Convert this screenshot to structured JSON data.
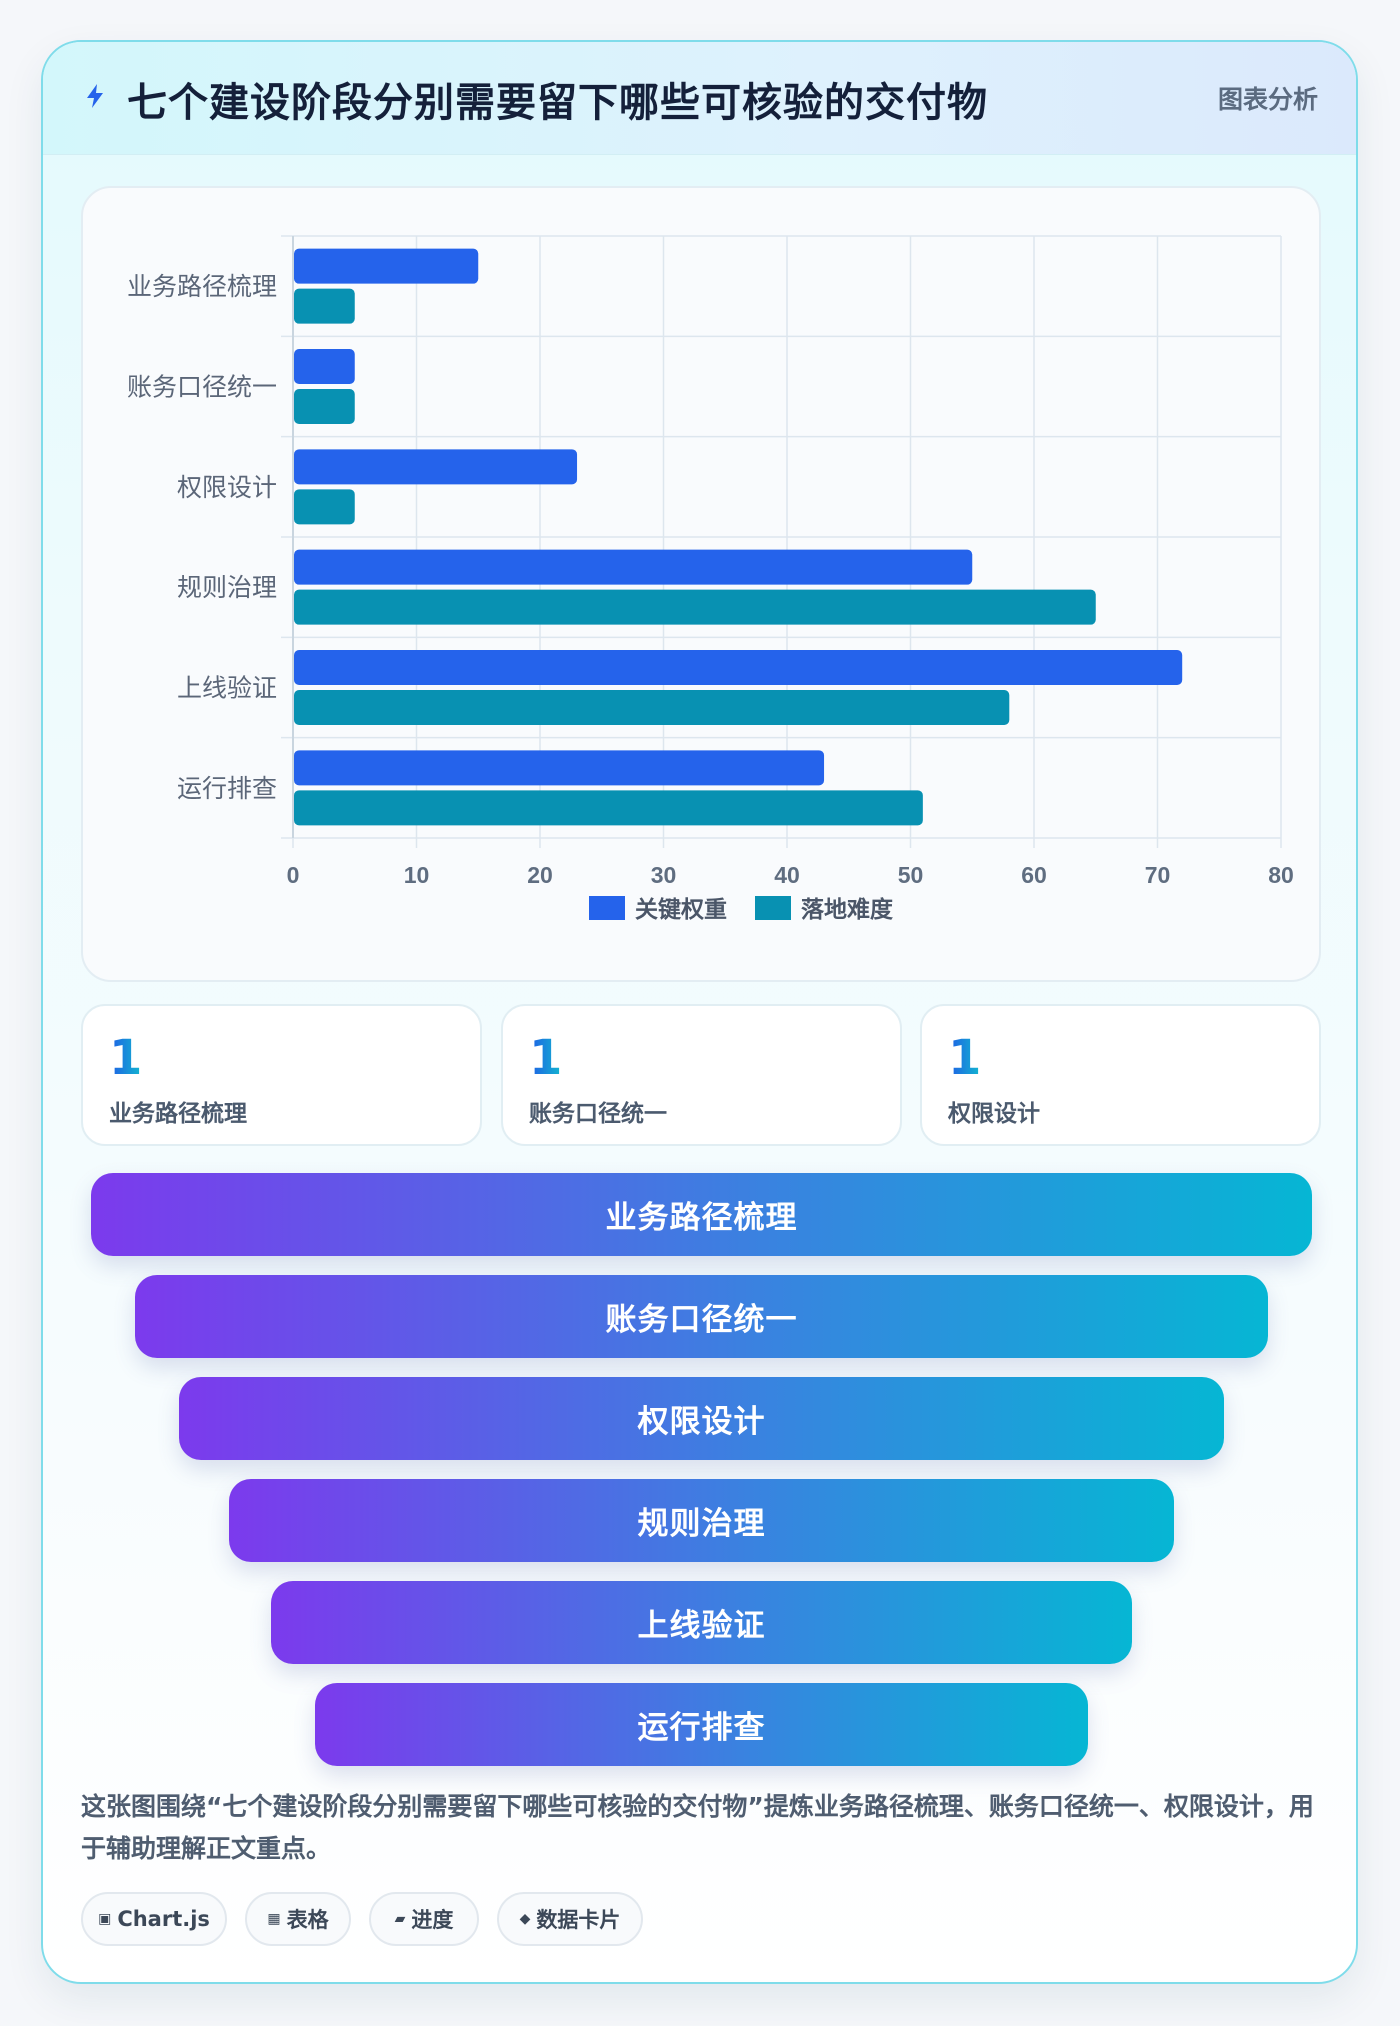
{
  "header": {
    "title": "七个建设阶段分别需要留下哪些可核验的交付物",
    "tag": "图表分析"
  },
  "chart_data": {
    "type": "bar",
    "orientation": "horizontal",
    "categories": [
      "业务路径梳理",
      "账务口径统一",
      "权限设计",
      "规则治理",
      "上线验证",
      "运行排查"
    ],
    "series": [
      {
        "name": "关键权重",
        "color": "#2563eb",
        "values": [
          15,
          5,
          23,
          55,
          72,
          43
        ]
      },
      {
        "name": "落地难度",
        "color": "#0891b2",
        "values": [
          5,
          5,
          5,
          65,
          58,
          51
        ]
      }
    ],
    "x_ticks": [
      0,
      10,
      20,
      30,
      40,
      50,
      60,
      70,
      80
    ],
    "xlim": [
      0,
      80
    ],
    "grid": true,
    "legend_position": "bottom"
  },
  "stats": [
    {
      "value": "1",
      "label": "业务路径梳理"
    },
    {
      "value": "1",
      "label": "账务口径统一"
    },
    {
      "value": "1",
      "label": "权限设计"
    }
  ],
  "funnel": [
    "业务路径梳理",
    "账务口径统一",
    "权限设计",
    "规则治理",
    "上线验证",
    "运行排查"
  ],
  "description": "这张图围绕“七个建设阶段分别需要留下哪些可核验的交付物”提炼业务路径梳理、账务口径统一、权限设计，用于辅助理解正文重点。",
  "chips": [
    {
      "icon": "▣",
      "icon_name": "chart-icon",
      "label": "Chart.js"
    },
    {
      "icon": "▦",
      "icon_name": "table-icon",
      "label": "表格"
    },
    {
      "icon": "▰",
      "icon_name": "progress-icon",
      "label": "进度"
    },
    {
      "icon": "◆",
      "icon_name": "card-icon",
      "label": "数据卡片"
    }
  ]
}
